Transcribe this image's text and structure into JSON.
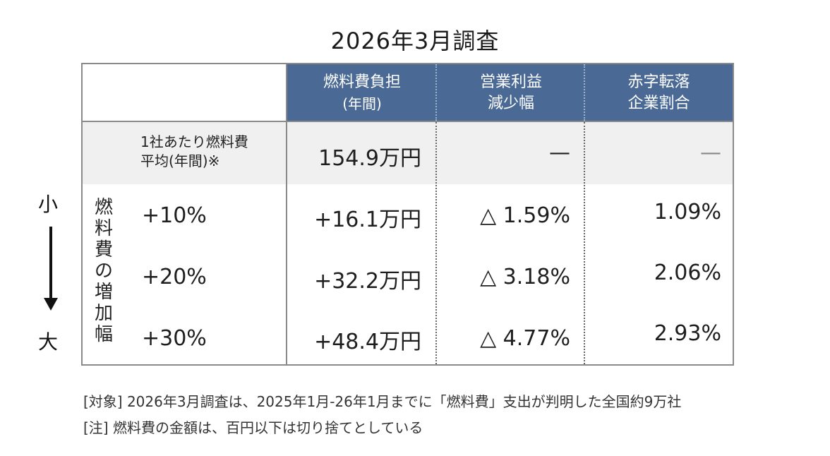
{
  "title": "2026年3月調査",
  "headers": {
    "col1": {
      "line1": "燃料費負担",
      "line2": "(年間)"
    },
    "col2": {
      "line1": "営業利益",
      "line2": "減少幅"
    },
    "col3": {
      "line1": "赤字転落",
      "line2": "企業割合"
    }
  },
  "average_row": {
    "label_line1": "1社あたり燃料費",
    "label_line2": "平均(年間)※",
    "burden": "154.9万円",
    "profit_decline": "—",
    "deficit_ratio": "—"
  },
  "increase_label": "燃料費の増加幅",
  "rows": [
    {
      "increase": "+10%",
      "burden": "+16.1万円",
      "profit_decline": "△ 1.59%",
      "deficit_ratio": "1.09%"
    },
    {
      "increase": "+20%",
      "burden": "+32.2万円",
      "profit_decline": "△ 3.18%",
      "deficit_ratio": "2.06%"
    },
    {
      "increase": "+30%",
      "burden": "+48.4万円",
      "profit_decline": "△ 4.77%",
      "deficit_ratio": "2.93%"
    }
  ],
  "scale": {
    "small": "小",
    "large": "大"
  },
  "notes": [
    "[対象] 2026年3月調査は、2025年1月-26年1月までに「燃料費」支出が判明した全国約9万社",
    "[注] 燃料費の金額は、百円以下は切り捨てとしている"
  ]
}
